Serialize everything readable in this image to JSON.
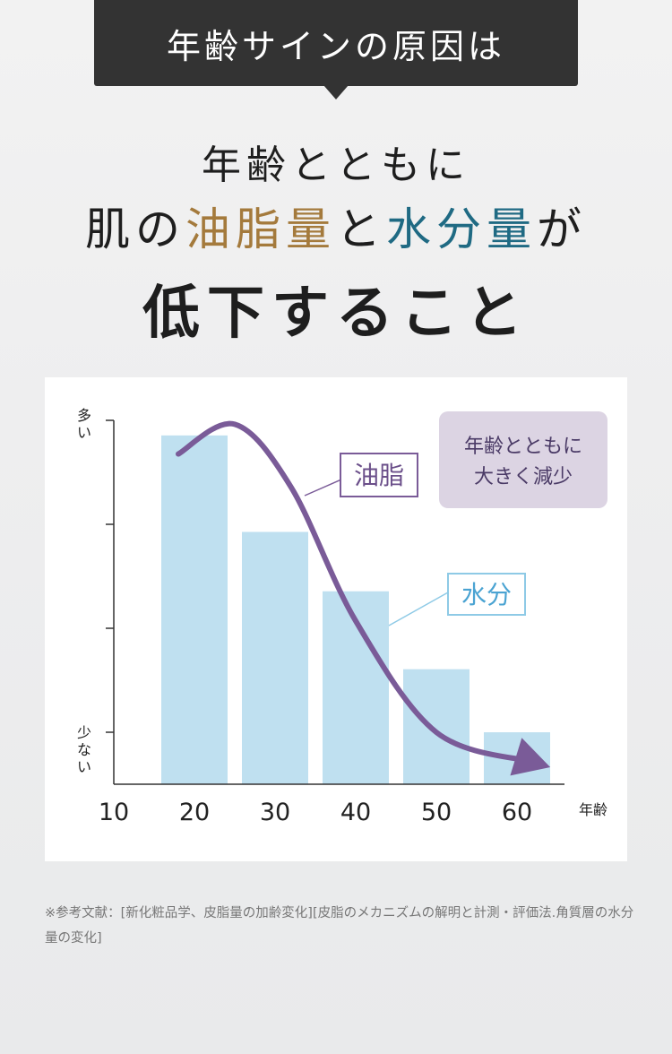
{
  "header": {
    "badge_label": "年齢サインの原因は"
  },
  "headline": {
    "line1": "年齢とともに",
    "line2_prefix": "肌の",
    "line2_oil": "油脂量",
    "line2_mid": "と",
    "line2_water": "水分量",
    "line2_suffix": "が",
    "line3": "低下すること"
  },
  "colors": {
    "oil": "#a47a3c",
    "water": "#1f6a83",
    "bar": "#bfe0f0",
    "curve": "#7a5b98",
    "callout_bg": "#dcd4e3"
  },
  "chart_data": {
    "type": "bar",
    "categories": [
      "20",
      "30",
      "40",
      "50",
      "60"
    ],
    "x_ticks": [
      "10",
      "20",
      "30",
      "40",
      "50",
      "60"
    ],
    "xlabel": "年齢",
    "ylabel_top": "多い",
    "ylabel_bottom": "少ない",
    "ylim": [
      0,
      100
    ],
    "series": [
      {
        "name": "水分",
        "type": "bar",
        "values": [
          94,
          68,
          52,
          31,
          14
        ]
      },
      {
        "name": "油脂",
        "type": "line",
        "x": [
          18,
          25,
          32,
          40,
          50,
          62
        ],
        "values": [
          89,
          97,
          80,
          44,
          14,
          6
        ]
      }
    ],
    "labels": {
      "oil": "油脂",
      "water": "水分"
    },
    "callout": {
      "line1": "年齢とともに",
      "line2": "大きく減少"
    }
  },
  "footnote": {
    "text": "※参考文献：[新化粧品学、皮脂量の加齢変化][皮脂のメカニズムの解明と計測・評価法.角質層の水分量の変化]"
  }
}
